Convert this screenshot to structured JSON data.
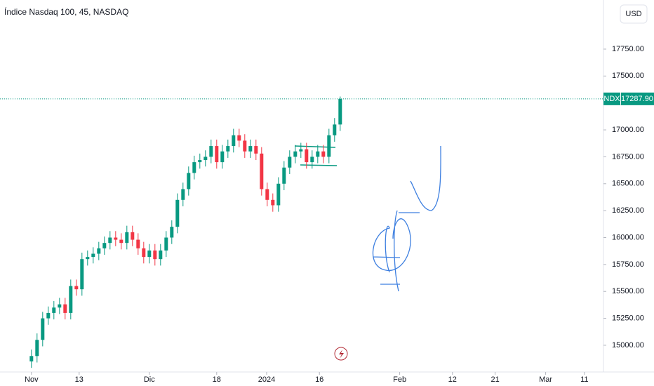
{
  "chart_data": {
    "type": "candlestick",
    "title": "Índice Nasdaq 100, 45, NASDAQ",
    "currency": "USD",
    "symbol": "NDX",
    "last_price": {
      "value": 17287.9,
      "label": "17287.90"
    },
    "up_color": "#089981",
    "down_color": "#f23645",
    "xlim": [
      -5.6,
      101.9
    ],
    "ylim": [
      14752,
      18206
    ],
    "xticks": [
      {
        "value": 0,
        "label": "Nov"
      },
      {
        "value": 8.5,
        "label": "13"
      },
      {
        "value": 21,
        "label": "Dic"
      },
      {
        "value": 33,
        "label": "18"
      },
      {
        "value": 41.9,
        "label": "2024"
      },
      {
        "value": 51.3,
        "label": "16"
      },
      {
        "value": 65.6,
        "label": "Feb"
      },
      {
        "value": 75,
        "label": "12"
      },
      {
        "value": 82.6,
        "label": "21"
      },
      {
        "value": 91.6,
        "label": "Mar"
      },
      {
        "value": 98.5,
        "label": "11"
      }
    ],
    "yticks": [
      {
        "value": 15000,
        "label": "15000.00"
      },
      {
        "value": 15250,
        "label": "15250.00"
      },
      {
        "value": 15500,
        "label": "15500.00"
      },
      {
        "value": 15750,
        "label": "15750.00"
      },
      {
        "value": 16000,
        "label": "16000.00"
      },
      {
        "value": 16250,
        "label": "16250.00"
      },
      {
        "value": 16500,
        "label": "16500.00"
      },
      {
        "value": 16750,
        "label": "16750.00"
      },
      {
        "value": 17000,
        "label": "17000.00"
      },
      {
        "value": 17250,
        "label": "17250.00"
      },
      {
        "value": 17500,
        "label": "17500.00"
      },
      {
        "value": 17750,
        "label": "17750.00"
      }
    ],
    "x": [
      0,
      1,
      2,
      3,
      4,
      5,
      6,
      7,
      8,
      9,
      10,
      11,
      12,
      13,
      14,
      15,
      16,
      17,
      18,
      19,
      20,
      21,
      22,
      23,
      24,
      25,
      26,
      27,
      28,
      29,
      30,
      31,
      32,
      33,
      34,
      35,
      36,
      37,
      38,
      39,
      40,
      41,
      42,
      43,
      44,
      45,
      46,
      47,
      48,
      49,
      50,
      51,
      52,
      53,
      54,
      55
    ],
    "open": [
      14850,
      14900,
      15050,
      15250,
      15300,
      15350,
      15380,
      15300,
      15550,
      15520,
      15800,
      15820,
      15850,
      15900,
      15950,
      16000,
      15980,
      15950,
      16050,
      15980,
      15900,
      15820,
      15880,
      15800,
      15880,
      16000,
      16100,
      16350,
      16450,
      16600,
      16700,
      16720,
      16750,
      16850,
      16700,
      16800,
      16850,
      16950,
      16900,
      16800,
      16850,
      16780,
      16450,
      16350,
      16300,
      16500,
      16650,
      16750,
      16800,
      16820,
      16700,
      16750,
      16800,
      16750,
      16950,
      17050
    ],
    "high": [
      14960,
      15110,
      15310,
      15360,
      15410,
      15440,
      15440,
      15610,
      15610,
      15860,
      15880,
      15910,
      15960,
      16010,
      16060,
      16060,
      16040,
      16110,
      16110,
      16040,
      15960,
      15940,
      15940,
      15940,
      16060,
      16160,
      16410,
      16510,
      16660,
      16760,
      16780,
      16810,
      16910,
      16910,
      16860,
      16910,
      17010,
      17010,
      16960,
      16910,
      16910,
      16840,
      16510,
      16410,
      16560,
      16710,
      16810,
      16860,
      16880,
      16880,
      16810,
      16860,
      16860,
      17010,
      17110,
      17310
    ],
    "low": [
      14790,
      14840,
      14990,
      15190,
      15240,
      15290,
      15240,
      15240,
      15460,
      15460,
      15740,
      15760,
      15790,
      15840,
      15890,
      15920,
      15890,
      15890,
      15920,
      15840,
      15760,
      15760,
      15740,
      15740,
      15820,
      15940,
      16040,
      16290,
      16390,
      16540,
      16640,
      16660,
      16690,
      16640,
      16640,
      16740,
      16790,
      16840,
      16740,
      16740,
      16720,
      16390,
      16290,
      16240,
      16240,
      16440,
      16590,
      16690,
      16740,
      16640,
      16640,
      16690,
      16690,
      16690,
      16890,
      16990
    ],
    "close": [
      14900,
      15050,
      15250,
      15300,
      15350,
      15380,
      15300,
      15550,
      15520,
      15800,
      15820,
      15850,
      15900,
      15950,
      16000,
      15980,
      15950,
      16050,
      15980,
      15900,
      15820,
      15880,
      15800,
      15880,
      16000,
      16100,
      16350,
      16450,
      16600,
      16700,
      16720,
      16750,
      16850,
      16700,
      16800,
      16850,
      16950,
      16900,
      16800,
      16850,
      16780,
      16450,
      16350,
      16300,
      16500,
      16650,
      16750,
      16800,
      16820,
      16700,
      16750,
      16800,
      16750,
      16950,
      17050,
      17287.9
    ]
  }
}
